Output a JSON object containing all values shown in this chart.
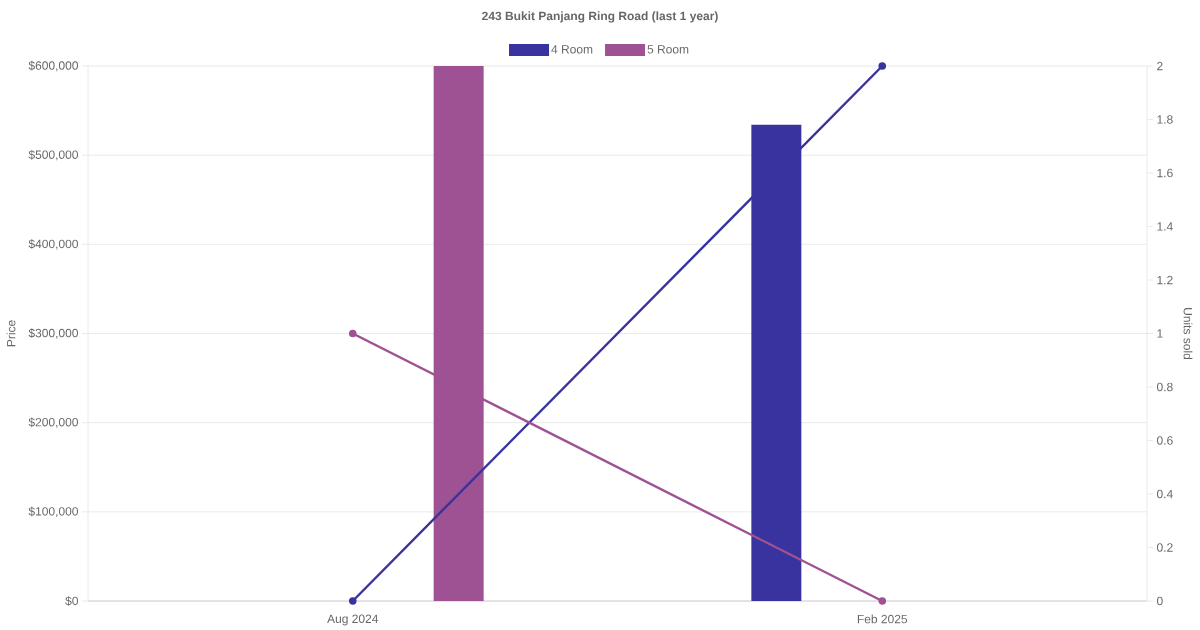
{
  "chart_data": {
    "type": "bar",
    "title": "243 Bukit Panjang Ring Road (last 1 year)",
    "ylabel": "Price",
    "y2label": "Units sold",
    "categories": [
      "Aug 2024",
      "Feb 2025"
    ],
    "series": [
      {
        "name": "4 Room",
        "color": "#38339f",
        "values": [
          null,
          534000
        ]
      },
      {
        "name": "5 Room",
        "color": "#9f5293",
        "values": [
          600000,
          null
        ]
      },
      {
        "type": "line",
        "axis": "y2",
        "color": "#38339f",
        "values": [
          0,
          2
        ]
      },
      {
        "type": "line",
        "axis": "y2",
        "color": "#9f5293",
        "values": [
          1,
          0
        ]
      }
    ],
    "ylim": [
      0,
      600000
    ],
    "yticks": [
      {
        "value": 0,
        "label": "$0"
      },
      {
        "value": 100000,
        "label": "$100,000"
      },
      {
        "value": 200000,
        "label": "$200,000"
      },
      {
        "value": 300000,
        "label": "$300,000"
      },
      {
        "value": 400000,
        "label": "$400,000"
      },
      {
        "value": 500000,
        "label": "$500,000"
      },
      {
        "value": 600000,
        "label": "$600,000"
      }
    ],
    "y2lim": [
      0,
      2
    ],
    "y2ticks": [
      0,
      0.2,
      0.4,
      0.6,
      0.8,
      1,
      1.2,
      1.4,
      1.6,
      1.8,
      2
    ],
    "grid": "y",
    "legend": "top",
    "marker": "circle"
  }
}
